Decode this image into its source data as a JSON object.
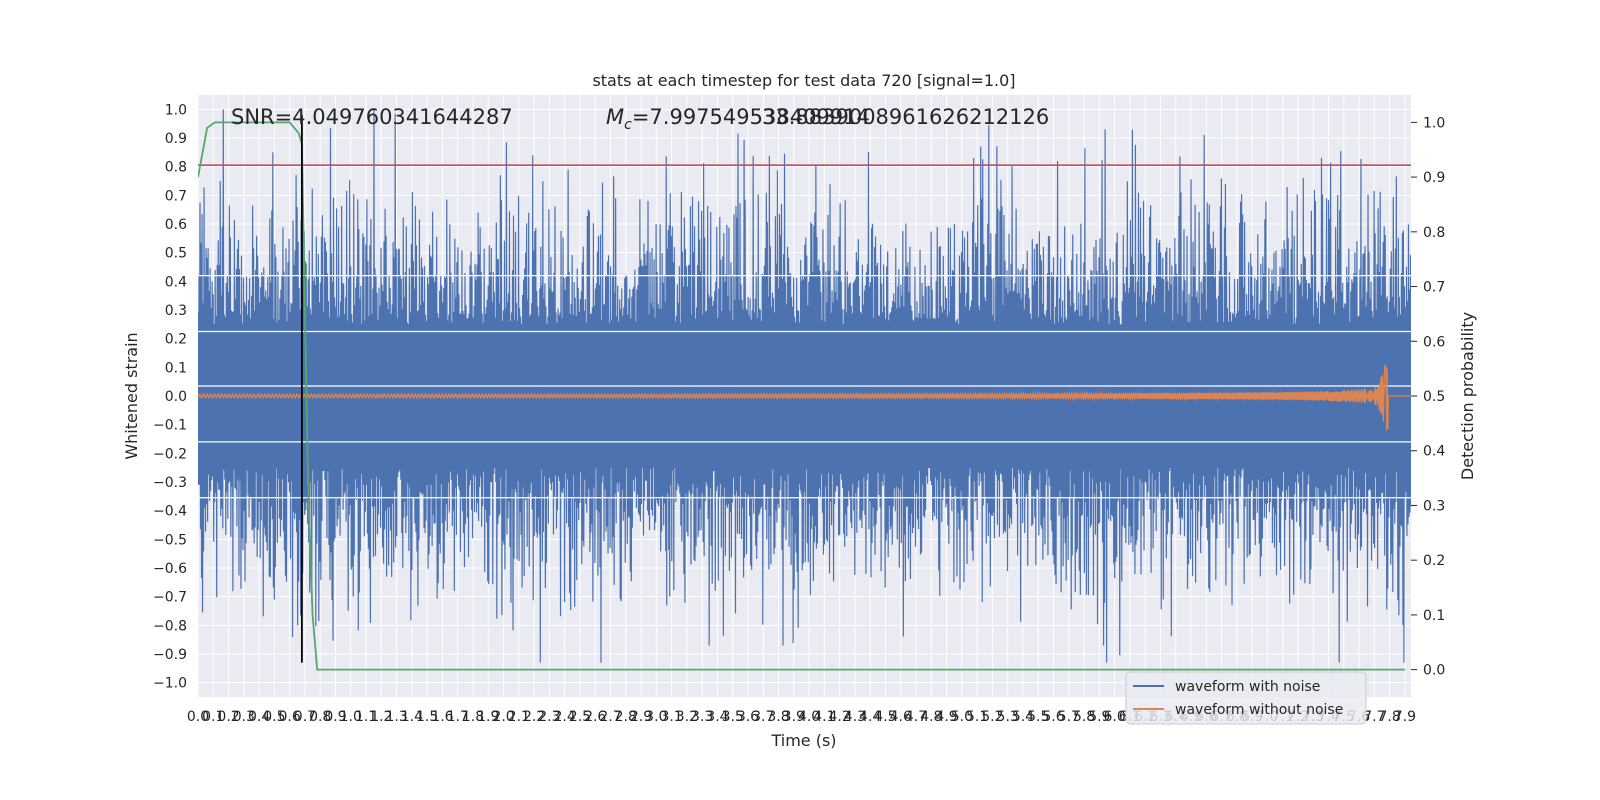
{
  "chart_data": {
    "type": "line",
    "title": "stats at each timestep for test data 720 [signal=1.0]",
    "xlabel": "Time (s)",
    "ylabel": "Whitened strain",
    "y2label": "Detection probability",
    "xlim": [
      0,
      7.94
    ],
    "ylim": [
      -1.05,
      1.05
    ],
    "y2lim": [
      -0.05,
      1.05
    ],
    "xticks": [
      0.0,
      0.1,
      0.2,
      0.3,
      0.4,
      0.5,
      0.6,
      0.7,
      0.8,
      0.9,
      1.0,
      1.1,
      1.2,
      1.3,
      1.4,
      1.5,
      1.6,
      1.7,
      1.8,
      1.9,
      2.0,
      2.1,
      2.2,
      2.3,
      2.4,
      2.5,
      2.6,
      2.7,
      2.8,
      2.9,
      3.0,
      3.1,
      3.2,
      3.3,
      3.4,
      3.5,
      3.6,
      3.7,
      3.8,
      3.9,
      4.0,
      4.1,
      4.2,
      4.3,
      4.4,
      4.5,
      4.6,
      4.7,
      4.8,
      4.9,
      5.0,
      5.1,
      5.2,
      5.3,
      5.4,
      5.5,
      5.6,
      5.7,
      5.8,
      5.9,
      6.0,
      6.1,
      6.2,
      6.3,
      6.4,
      6.5,
      6.6,
      6.7,
      6.8,
      6.9,
      7.0,
      7.1,
      7.2,
      7.3,
      7.4,
      7.5,
      7.6,
      7.7,
      7.8,
      7.9
    ],
    "yticks": [
      -1.0,
      -0.9,
      -0.8,
      -0.7,
      -0.6,
      -0.5,
      -0.4,
      -0.3,
      -0.2,
      -0.1,
      0.0,
      0.1,
      0.2,
      0.3,
      0.4,
      0.5,
      0.6,
      0.7,
      0.8,
      0.9,
      1.0
    ],
    "y2ticks": [
      0.0,
      0.1,
      0.2,
      0.3,
      0.4,
      0.5,
      0.6,
      0.7,
      0.8,
      0.9,
      1.0
    ],
    "grid": true,
    "legend_position": "lower-right",
    "annotations": {
      "snr": "SNR=4.049760341644287",
      "mc_symbol": "M",
      "mc_subscript": "c",
      "mc_value": "=7.997549538409914",
      "overlay_value": "33.8839008961626212126"
    },
    "series": [
      {
        "name": "waveform with noise",
        "color": "#4c72b0",
        "kind": "noise",
        "envelope": 1.0,
        "axis": "left"
      },
      {
        "name": "waveform without noise",
        "color": "#dd8452",
        "kind": "chirp",
        "t_merger": 7.79,
        "peak_amplitude": 0.13,
        "axis": "left"
      },
      {
        "color": "#55a868",
        "kind": "probability",
        "axis": "right",
        "x": [
          0.0,
          0.06,
          0.11,
          0.2,
          0.5,
          0.6,
          0.66,
          0.68,
          0.72,
          0.75,
          0.78,
          7.9
        ],
        "y": [
          0.9,
          0.99,
          1.0,
          1.0,
          1.0,
          1.0,
          0.98,
          0.96,
          0.35,
          0.1,
          0.0,
          0.0
        ]
      },
      {
        "color": "#c44e52",
        "kind": "threshold",
        "axis": "left",
        "value": 0.805
      },
      {
        "color": "#000000",
        "kind": "vline",
        "axis": "left",
        "x": 0.68,
        "y": [
          -0.93,
          0.98
        ]
      }
    ]
  }
}
